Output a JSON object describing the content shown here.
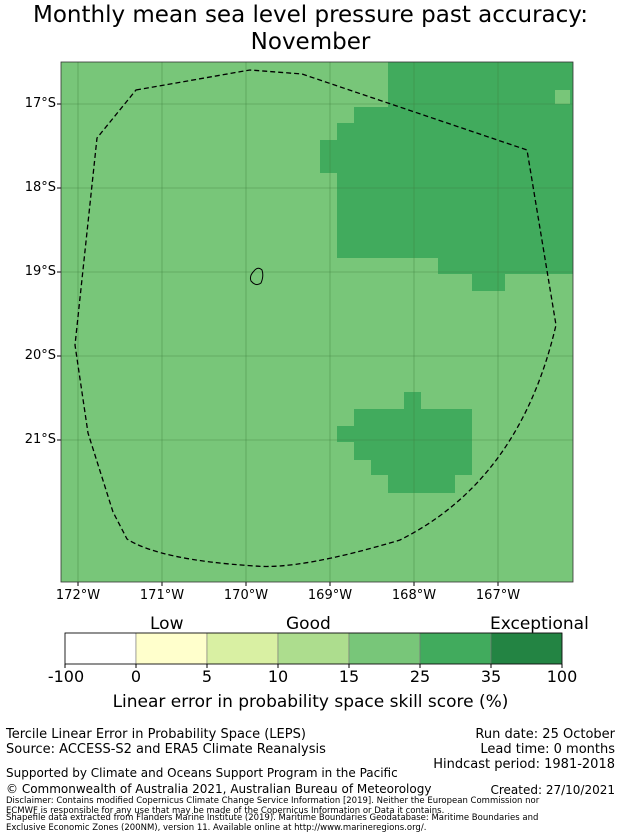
{
  "title_line1": "Monthly mean sea level pressure past accuracy:",
  "title_line2": "November",
  "map": {
    "lat_labels": [
      "17°S",
      "18°S",
      "19°S",
      "20°S",
      "21°S"
    ],
    "lon_labels": [
      "172°W",
      "171°W",
      "170°W",
      "169°W",
      "168°W",
      "167°W"
    ],
    "lat_range": [
      -22.7,
      -16.5
    ],
    "lon_range": [
      -172.2,
      -166.2
    ],
    "base_color": "#78c679",
    "high_color": "#41ab5d",
    "high_cells_description_free": true
  },
  "colorbar": {
    "categories": [
      "Low",
      "Good",
      "Exceptional"
    ],
    "ticks": [
      "-100",
      "0",
      "5",
      "10",
      "15",
      "25",
      "35",
      "100"
    ],
    "colors": [
      "#ffffff",
      "#ffffcc",
      "#d9f0a3",
      "#addd8e",
      "#78c679",
      "#41ab5d",
      "#238443"
    ],
    "label": "Linear error in probability space skill score (%)"
  },
  "info": {
    "method_line": "Tercile Linear Error in Probability Space (LEPS)",
    "source_line": "Source: ACCESS-S2 and ERA5 Climate Reanalysis",
    "run_date": "Run date: 25 October",
    "lead_time": "Lead time: 0 months",
    "hindcast": "Hindcast period: 1981-2018",
    "support": "Supported by Climate and Oceans Support Program in the Pacific",
    "copyright": "© Commonwealth of Australia 2021, Australian Bureau of Meteorology",
    "created": "Created: 27/10/2021",
    "disclaimer1": "Disclaimer: Contains modified Copernicus Climate Change Service Information [2019]. Neither the European Commission nor",
    "disclaimer2": "ECMWF is responsible for any use that may be made of the Copernicus Information or Data it contains.",
    "shapefile1": "Shapefile data extracted from Flanders Marine Institute (2019). Maritime Boundaries Geodatabase: Maritime Boundaries and",
    "shapefile2": "Exclusive Economic Zones (200NM), version 11. Available online at http://www.marineregions.org/."
  }
}
